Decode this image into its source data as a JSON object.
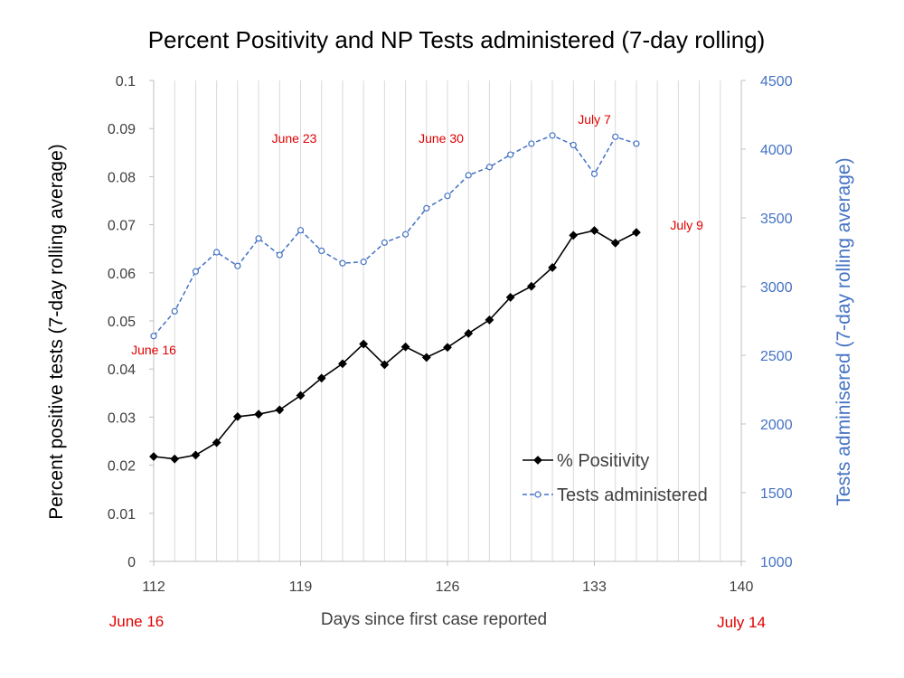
{
  "chart_data": {
    "type": "line",
    "title": "Percent Positivity and NP Tests administered  (7-day rolling)",
    "xlabel": "Days since first case reported",
    "ylabel_left": "Percent positive tests (7-day rolling average)",
    "ylabel_right": "Tests adminisered (7-day rolling average)",
    "xlim": [
      112,
      140
    ],
    "x_ticks": [
      112,
      119,
      126,
      133,
      140
    ],
    "ylim_left": [
      0,
      0.1
    ],
    "y_ticks_left": [
      "0",
      "0.01",
      "0.02",
      "0.03",
      "0.04",
      "0.05",
      "0.06",
      "0.07",
      "0.08",
      "0.09",
      "0.1"
    ],
    "ylim_right": [
      1000,
      4500
    ],
    "y_ticks_right": [
      "1000",
      "1500",
      "2000",
      "2500",
      "3000",
      "3500",
      "4000",
      "4500"
    ],
    "grid": "vertical",
    "legend_position": "bottom-right",
    "series": [
      {
        "name": "% Positivity",
        "axis": "left",
        "color": "#000000",
        "marker": "diamond",
        "line": "solid",
        "x": [
          112,
          113,
          114,
          115,
          116,
          117,
          118,
          119,
          120,
          121,
          122,
          123,
          124,
          125,
          126,
          127,
          128,
          129,
          130,
          131,
          132,
          133,
          134,
          135
        ],
        "values": [
          0.0218,
          0.0213,
          0.0221,
          0.0247,
          0.0301,
          0.0306,
          0.0315,
          0.0345,
          0.0381,
          0.0411,
          0.0452,
          0.0409,
          0.0446,
          0.0424,
          0.0445,
          0.0474,
          0.0502,
          0.0549,
          0.0572,
          0.0611,
          0.0678,
          0.0688,
          0.0662,
          0.0684
        ]
      },
      {
        "name": "Tests administered",
        "axis": "right",
        "color": "#4472c4",
        "marker": "circle-open",
        "line": "dashed",
        "x": [
          112,
          113,
          114,
          115,
          116,
          117,
          118,
          119,
          120,
          121,
          122,
          123,
          124,
          125,
          126,
          127,
          128,
          129,
          130,
          131,
          132,
          133,
          134,
          135
        ],
        "values": [
          2640,
          2820,
          3110,
          3250,
          3150,
          3350,
          3230,
          3410,
          3260,
          3170,
          3180,
          3320,
          3380,
          3570,
          3660,
          3810,
          3870,
          3960,
          4040,
          4100,
          4030,
          3820,
          4090,
          4040
        ]
      }
    ],
    "annotations": [
      {
        "text": "June 16",
        "at_x": 112,
        "at_y_left": 0.043
      },
      {
        "text": "June 23",
        "at_x": 118.7,
        "at_y_left": 0.087
      },
      {
        "text": "June 30",
        "at_x": 125.7,
        "at_y_left": 0.087
      },
      {
        "text": "July 7",
        "at_x": 133,
        "at_y_left": 0.091
      },
      {
        "text": "July 9",
        "at_x": 137.4,
        "at_y_left": 0.069
      }
    ],
    "x_axis_end_labels": [
      "June 16",
      "July 14"
    ]
  },
  "colors": {
    "positivity": "#000000",
    "tests": "#4472c4",
    "annotation": "#e00000",
    "grid": "#d9d9d9"
  }
}
